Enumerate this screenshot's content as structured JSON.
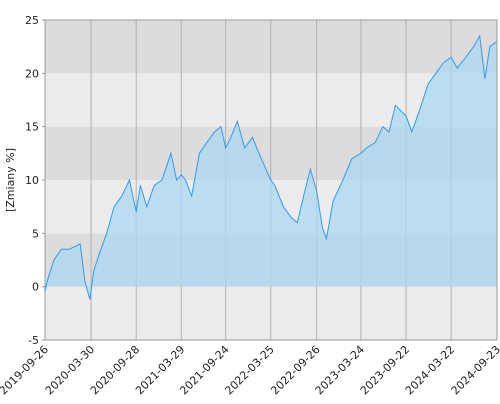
{
  "chart_data": {
    "type": "area",
    "y_label": "[Zmiany %]",
    "x": [
      "2019-09-26",
      "2019-10-05",
      "2019-11-01",
      "2019-12-01",
      "2020-01-01",
      "2020-02-15",
      "2020-03-05",
      "2020-03-25",
      "2020-04-10",
      "2020-05-01",
      "2020-06-01",
      "2020-07-01",
      "2020-08-01",
      "2020-09-01",
      "2020-09-28",
      "2020-10-15",
      "2020-11-10",
      "2020-12-10",
      "2021-01-10",
      "2021-02-15",
      "2021-03-10",
      "2021-03-29",
      "2021-04-15",
      "2021-05-10",
      "2021-06-10",
      "2021-07-10",
      "2021-08-10",
      "2021-09-05",
      "2021-09-24",
      "2021-10-15",
      "2021-11-10",
      "2021-12-10",
      "2022-01-10",
      "2022-02-15",
      "2022-03-25",
      "2022-04-10",
      "2022-05-15",
      "2022-06-15",
      "2022-07-10",
      "2022-08-10",
      "2022-09-01",
      "2022-09-26",
      "2022-10-20",
      "2022-11-05",
      "2022-12-01",
      "2023-01-10",
      "2023-02-15",
      "2023-03-24",
      "2023-04-15",
      "2023-05-20",
      "2023-06-20",
      "2023-07-15",
      "2023-08-10",
      "2023-09-22",
      "2023-10-15",
      "2023-11-15",
      "2023-12-20",
      "2024-01-20",
      "2024-02-20",
      "2024-03-22",
      "2024-04-15",
      "2024-05-20",
      "2024-06-20",
      "2024-07-15",
      "2024-08-05",
      "2024-08-25",
      "2024-09-23"
    ],
    "series": [
      {
        "name": "Zmiany %",
        "color": "#3399ee",
        "fill": "#a9daf0",
        "values": [
          -0.5,
          0.5,
          2.5,
          3.5,
          3.5,
          4,
          0.5,
          -1.2,
          1.5,
          3,
          5,
          7.5,
          8.5,
          10,
          7,
          9.5,
          7.5,
          9.5,
          10,
          12.5,
          10,
          10.5,
          10,
          8.5,
          12.5,
          13.5,
          14.5,
          15,
          13,
          14,
          15.5,
          13,
          14,
          12,
          10,
          9.5,
          7.5,
          6.5,
          6,
          9,
          11,
          9,
          5.5,
          4.5,
          8,
          10,
          12,
          12.5,
          13,
          13.5,
          15,
          14.5,
          17,
          16,
          14.5,
          16.5,
          19,
          20,
          21,
          21.5,
          20.5,
          21.5,
          22.5,
          23.5,
          19.5,
          22.5,
          23
        ]
      }
    ],
    "xlim": [
      "2019-09-26",
      "2024-09-23"
    ],
    "xticks": [
      "2019-09-26",
      "2020-03-30",
      "2020-09-28",
      "2021-03-29",
      "2021-09-24",
      "2022-03-25",
      "2022-09-26",
      "2023-03-24",
      "2023-09-22",
      "2024-03-22",
      "2024-09-23"
    ],
    "ylim": [
      -5,
      25
    ],
    "yticks": [
      -5,
      0,
      5,
      10,
      15,
      20,
      25
    ],
    "grid": true
  }
}
